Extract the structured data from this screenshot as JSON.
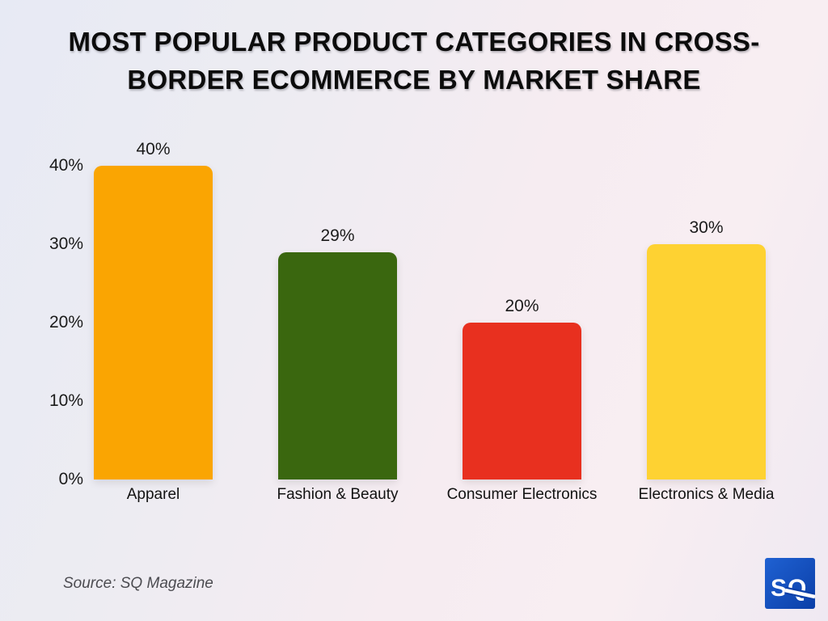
{
  "title": "MOST POPULAR PRODUCT CATEGORIES IN CROSS-BORDER ECOMMERCE BY MARKET SHARE",
  "source": "Source: SQ Magazine",
  "logo": {
    "text": "SQ",
    "text_color": "#ffffff",
    "bg_top": "#1f61d2",
    "bg_bottom": "#0b3fa8"
  },
  "chart_data": {
    "type": "bar",
    "title": "MOST POPULAR PRODUCT CATEGORIES IN CROSS-BORDER ECOMMERCE BY MARKET SHARE",
    "categories": [
      "Apparel",
      "Fashion & Beauty",
      "Consumer Electronics",
      "Electronics & Media"
    ],
    "values": [
      40,
      29,
      20,
      30
    ],
    "value_labels": [
      "40%",
      "29%",
      "20%",
      "30%"
    ],
    "bar_colors": [
      "#FAA502",
      "#3A670F",
      "#E8301F",
      "#FED232"
    ],
    "y_ticks": [
      "0%",
      "10%",
      "20%",
      "30%",
      "40%"
    ],
    "ylim": [
      0,
      40
    ],
    "xlabel": "",
    "ylabel": "",
    "grid": false,
    "legend": false
  }
}
